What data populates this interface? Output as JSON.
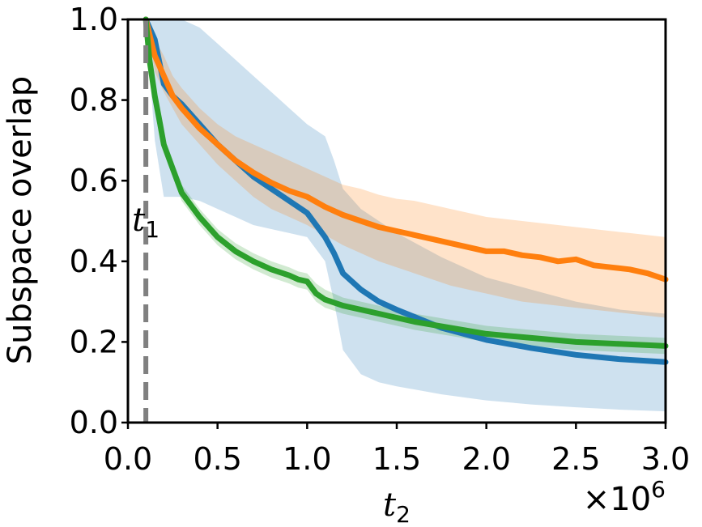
{
  "chart_data": {
    "type": "line",
    "title": "",
    "xlabel": "t",
    "xlabel_subscript": "2",
    "ylabel": "Subspace overlap",
    "x_multiplier_label": "×10",
    "x_multiplier_exponent": "6",
    "xlim": [
      0,
      3000000
    ],
    "ylim": [
      0,
      1
    ],
    "x_ticks": [
      0,
      500000,
      1000000,
      1500000,
      2000000,
      2500000,
      3000000
    ],
    "x_tick_labels": [
      "0.0",
      "0.5",
      "1.0",
      "1.5",
      "2.0",
      "2.5",
      "3.0"
    ],
    "y_ticks": [
      0,
      0.2,
      0.4,
      0.6,
      0.8,
      1.0
    ],
    "y_tick_labels": [
      "0.0",
      "0.2",
      "0.4",
      "0.6",
      "0.8",
      "1.0"
    ],
    "grid": false,
    "legend": "none",
    "vline": {
      "x": 100000,
      "label": "t",
      "label_subscript": "1",
      "color": "#808080",
      "style": "dashed"
    },
    "series": [
      {
        "color": "#1f77b4",
        "x": [
          100000,
          150000,
          200000,
          250000,
          300000,
          400000,
          500000,
          600000,
          700000,
          800000,
          900000,
          1000000,
          1100000,
          1150000,
          1200000,
          1300000,
          1400000,
          1500000,
          1750000,
          2000000,
          2250000,
          2500000,
          2750000,
          3000000
        ],
        "y": [
          1.0,
          0.95,
          0.84,
          0.81,
          0.79,
          0.74,
          0.69,
          0.65,
          0.61,
          0.58,
          0.55,
          0.52,
          0.46,
          0.42,
          0.37,
          0.33,
          0.3,
          0.28,
          0.235,
          0.205,
          0.185,
          0.168,
          0.157,
          0.15
        ],
        "y_lower": [
          1.0,
          0.7,
          0.56,
          0.56,
          0.56,
          0.55,
          0.53,
          0.51,
          0.49,
          0.48,
          0.47,
          0.46,
          0.4,
          0.3,
          0.18,
          0.12,
          0.1,
          0.09,
          0.07,
          0.055,
          0.045,
          0.038,
          0.032,
          0.028
        ],
        "y_upper": [
          1.0,
          1.0,
          1.0,
          1.0,
          1.0,
          0.98,
          0.94,
          0.9,
          0.86,
          0.82,
          0.78,
          0.74,
          0.71,
          0.65,
          0.58,
          0.53,
          0.5,
          0.47,
          0.41,
          0.36,
          0.33,
          0.3,
          0.28,
          0.27
        ]
      },
      {
        "color": "#ff7f0e",
        "x": [
          100000,
          150000,
          200000,
          250000,
          300000,
          400000,
          500000,
          600000,
          700000,
          800000,
          900000,
          1000000,
          1100000,
          1200000,
          1300000,
          1400000,
          1500000,
          1600000,
          1700000,
          1800000,
          1900000,
          2000000,
          2100000,
          2200000,
          2300000,
          2400000,
          2500000,
          2600000,
          2700000,
          2800000,
          2900000,
          3000000
        ],
        "y": [
          1.0,
          0.91,
          0.86,
          0.81,
          0.78,
          0.73,
          0.69,
          0.65,
          0.62,
          0.595,
          0.575,
          0.56,
          0.535,
          0.515,
          0.5,
          0.485,
          0.475,
          0.465,
          0.455,
          0.445,
          0.435,
          0.425,
          0.425,
          0.415,
          0.41,
          0.4,
          0.405,
          0.39,
          0.385,
          0.38,
          0.37,
          0.355
        ],
        "y_lower": [
          1.0,
          0.87,
          0.82,
          0.78,
          0.74,
          0.69,
          0.64,
          0.6,
          0.56,
          0.53,
          0.51,
          0.49,
          0.465,
          0.44,
          0.42,
          0.4,
          0.385,
          0.37,
          0.355,
          0.34,
          0.33,
          0.32,
          0.31,
          0.3,
          0.295,
          0.29,
          0.285,
          0.28,
          0.275,
          0.27,
          0.265,
          0.26
        ],
        "y_upper": [
          1.0,
          0.95,
          0.91,
          0.86,
          0.83,
          0.78,
          0.74,
          0.71,
          0.69,
          0.67,
          0.65,
          0.63,
          0.61,
          0.59,
          0.58,
          0.565,
          0.555,
          0.55,
          0.54,
          0.53,
          0.52,
          0.51,
          0.505,
          0.5,
          0.495,
          0.49,
          0.485,
          0.48,
          0.475,
          0.47,
          0.465,
          0.46
        ]
      },
      {
        "color": "#2ca02c",
        "x": [
          100000,
          120000,
          150000,
          180000,
          200000,
          250000,
          300000,
          400000,
          500000,
          600000,
          700000,
          800000,
          900000,
          950000,
          1000000,
          1050000,
          1100000,
          1200000,
          1400000,
          1600000,
          1800000,
          2000000,
          2250000,
          2500000,
          2750000,
          3000000
        ],
        "y": [
          1.0,
          0.9,
          0.81,
          0.74,
          0.69,
          0.63,
          0.57,
          0.51,
          0.46,
          0.425,
          0.4,
          0.38,
          0.365,
          0.355,
          0.35,
          0.32,
          0.305,
          0.29,
          0.27,
          0.25,
          0.235,
          0.22,
          0.21,
          0.2,
          0.195,
          0.19
        ],
        "y_lower": [
          1.0,
          0.88,
          0.79,
          0.72,
          0.67,
          0.61,
          0.55,
          0.49,
          0.44,
          0.405,
          0.38,
          0.36,
          0.345,
          0.335,
          0.33,
          0.3,
          0.285,
          0.27,
          0.25,
          0.23,
          0.215,
          0.2,
          0.19,
          0.18,
          0.175,
          0.17
        ],
        "y_upper": [
          1.0,
          0.92,
          0.83,
          0.76,
          0.71,
          0.65,
          0.59,
          0.53,
          0.48,
          0.445,
          0.42,
          0.4,
          0.385,
          0.375,
          0.37,
          0.345,
          0.33,
          0.31,
          0.29,
          0.27,
          0.255,
          0.24,
          0.23,
          0.22,
          0.215,
          0.21
        ]
      }
    ]
  }
}
